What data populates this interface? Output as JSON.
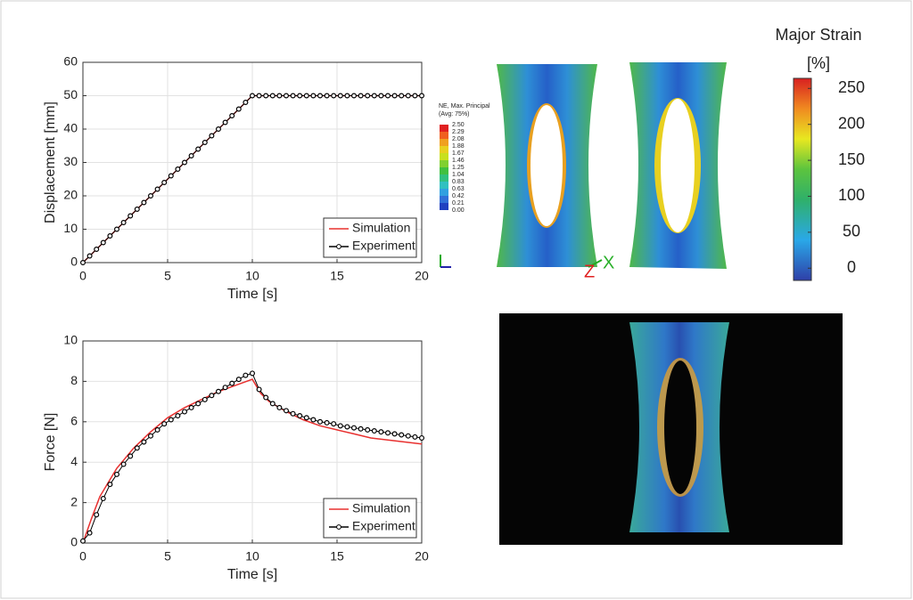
{
  "chart_data": [
    {
      "type": "line",
      "xlabel": "Time [s]",
      "ylabel": "Displacement [mm]",
      "xlim": [
        0,
        20
      ],
      "ylim": [
        0,
        60
      ],
      "xticks": [
        0,
        5,
        10,
        15,
        20
      ],
      "yticks": [
        0,
        10,
        20,
        30,
        40,
        50,
        60
      ],
      "grid": true,
      "legend": "lower right",
      "series": [
        {
          "name": "Simulation",
          "color": "#e8302f",
          "marker": false,
          "x": [
            0,
            10,
            20
          ],
          "values": [
            0,
            50,
            50
          ]
        },
        {
          "name": "Experiment",
          "color": "#000000",
          "marker": true,
          "x": [
            0,
            0.4,
            0.8,
            1.2,
            1.6,
            2,
            2.4,
            2.8,
            3.2,
            3.6,
            4,
            4.4,
            4.8,
            5.2,
            5.6,
            6,
            6.4,
            6.8,
            7.2,
            7.6,
            8,
            8.4,
            8.8,
            9.2,
            9.6,
            10,
            10.4,
            10.8,
            11.2,
            11.6,
            12,
            12.4,
            12.8,
            13.2,
            13.6,
            14,
            14.4,
            14.8,
            15.2,
            15.6,
            16,
            16.4,
            16.8,
            17.2,
            17.6,
            18,
            18.4,
            18.8,
            19.2,
            19.6,
            20
          ],
          "values": [
            0,
            2,
            4,
            6,
            8,
            10,
            12,
            14,
            16,
            18,
            20,
            22,
            24,
            26,
            28,
            30,
            32,
            34,
            36,
            38,
            40,
            42,
            44,
            46,
            48,
            50,
            50,
            50,
            50,
            50,
            50,
            50,
            50,
            50,
            50,
            50,
            50,
            50,
            50,
            50,
            50,
            50,
            50,
            50,
            50,
            50,
            50,
            50,
            50,
            50,
            50
          ]
        }
      ]
    },
    {
      "type": "line",
      "xlabel": "Time [s]",
      "ylabel": "Force [N]",
      "xlim": [
        0,
        20
      ],
      "ylim": [
        0,
        10
      ],
      "xticks": [
        0,
        5,
        10,
        15,
        20
      ],
      "yticks": [
        0,
        2,
        4,
        6,
        8,
        10
      ],
      "grid": true,
      "legend": "lower right",
      "series": [
        {
          "name": "Simulation",
          "color": "#e8302f",
          "marker": false,
          "x": [
            0,
            0.5,
            1,
            2,
            3,
            4,
            5,
            6,
            7,
            8,
            9,
            10,
            10.5,
            11,
            12,
            13,
            14,
            15,
            16,
            17,
            18,
            19,
            20
          ],
          "values": [
            0,
            1.2,
            2.3,
            3.7,
            4.7,
            5.5,
            6.2,
            6.7,
            7.1,
            7.5,
            7.8,
            8.1,
            7.4,
            7.0,
            6.5,
            6.1,
            5.8,
            5.6,
            5.4,
            5.2,
            5.1,
            5.0,
            4.9
          ]
        },
        {
          "name": "Experiment",
          "color": "#000000",
          "marker": true,
          "x": [
            0,
            0.4,
            0.8,
            1.2,
            1.6,
            2,
            2.4,
            2.8,
            3.2,
            3.6,
            4,
            4.4,
            4.8,
            5.2,
            5.6,
            6,
            6.4,
            6.8,
            7.2,
            7.6,
            8,
            8.4,
            8.8,
            9.2,
            9.6,
            10,
            10.4,
            10.8,
            11.2,
            11.6,
            12,
            12.4,
            12.8,
            13.2,
            13.6,
            14,
            14.4,
            14.8,
            15.2,
            15.6,
            16,
            16.4,
            16.8,
            17.2,
            17.6,
            18,
            18.4,
            18.8,
            19.2,
            19.6,
            20
          ],
          "values": [
            0.1,
            0.5,
            1.4,
            2.2,
            2.9,
            3.4,
            3.9,
            4.3,
            4.7,
            5.0,
            5.3,
            5.6,
            5.9,
            6.1,
            6.3,
            6.5,
            6.7,
            6.9,
            7.1,
            7.3,
            7.5,
            7.7,
            7.9,
            8.1,
            8.3,
            8.4,
            7.6,
            7.2,
            6.9,
            6.7,
            6.55,
            6.4,
            6.3,
            6.2,
            6.1,
            6.0,
            5.95,
            5.9,
            5.8,
            5.75,
            5.7,
            5.65,
            5.6,
            5.55,
            5.5,
            5.45,
            5.4,
            5.35,
            5.3,
            5.25,
            5.2
          ]
        }
      ]
    }
  ],
  "fe_legend": {
    "title": "NE, Max. Principal",
    "subtitle": "(Avg: 75%)",
    "labels": [
      "2.50",
      "2.29",
      "2.08",
      "1.88",
      "1.67",
      "1.46",
      "1.25",
      "1.04",
      "0.83",
      "0.63",
      "0.42",
      "0.21",
      "0.00"
    ]
  },
  "triad": [
    "Z",
    "X"
  ],
  "strain_colorbar": {
    "title": "Major Strain",
    "unit": "[%]",
    "lim": [
      -17,
      264
    ],
    "ticks": [
      0,
      50,
      100,
      150,
      200,
      250
    ]
  }
}
